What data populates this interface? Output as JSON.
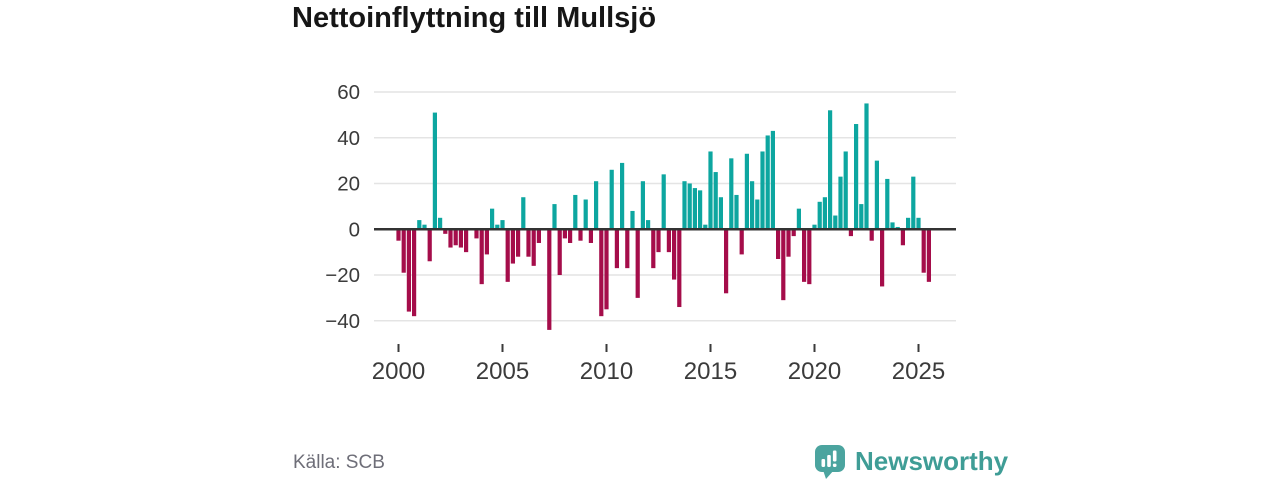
{
  "title": "Nettoinflyttning till Mullsjö",
  "source": "Källa: SCB",
  "brand": {
    "name": "Newsworthy",
    "icon": "newsworthy-speech-bubble-chart"
  },
  "colors": {
    "positive": "#0da6a0",
    "negative": "#a50d4a",
    "grid": "#e4e4e4",
    "zero_line": "#333333",
    "axis_text": "#3b3b3b",
    "title_text": "#161616",
    "source_text": "#6e6e78",
    "brand_teal": "#3f9d96",
    "background": "#ffffff"
  },
  "chart_data": {
    "type": "bar",
    "title": "Nettoinflyttning till Mullsjö",
    "frequency": "quarterly",
    "start": "2000-Q1",
    "end": "2025-Q3",
    "xlabel": "",
    "ylabel": "",
    "grid": "horizontal",
    "legend": "none",
    "y_ticks": [
      60,
      40,
      20,
      0,
      -20,
      -40
    ],
    "x_ticks": [
      2000,
      2005,
      2010,
      2015,
      2020,
      2025
    ],
    "ylim": [
      -47,
      63
    ],
    "values": [
      -5,
      -19,
      -36,
      -38,
      4,
      2,
      -14,
      51,
      5,
      -2,
      -8,
      -7,
      -8,
      -10,
      0,
      -4,
      -24,
      -11,
      9,
      2,
      4,
      -23,
      -15,
      -12,
      14,
      -12,
      -16,
      -6,
      0,
      -44,
      11,
      -20,
      -4,
      -6,
      15,
      -5,
      13,
      -6,
      21,
      -38,
      -35,
      26,
      -17,
      29,
      -17,
      8,
      -30,
      21,
      4,
      -17,
      -10,
      24,
      -10,
      -22,
      -34,
      21,
      20,
      18,
      17,
      2,
      34,
      25,
      14,
      -28,
      31,
      15,
      -11,
      33,
      21,
      13,
      34,
      41,
      43,
      -13,
      -31,
      -12,
      -3,
      9,
      -23,
      -24,
      2,
      12,
      14,
      52,
      6,
      23,
      34,
      -3,
      46,
      11,
      55,
      -5,
      30,
      -25,
      22,
      3,
      1,
      -7,
      5,
      23,
      5,
      -19,
      -23
    ]
  }
}
